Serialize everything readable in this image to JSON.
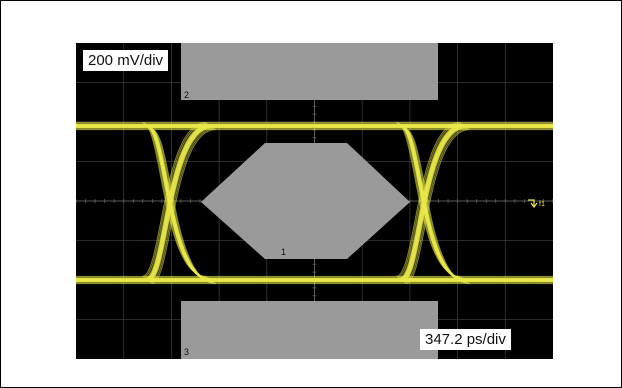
{
  "scope": {
    "vertical_scale": "200 mV/div",
    "horizontal_scale": "347.2 ps/div",
    "trigger_marker": "T",
    "trigger_level_label": "f1",
    "mask_regions": [
      {
        "id": "top",
        "label": "2"
      },
      {
        "id": "center",
        "label": "1"
      },
      {
        "id": "bottom",
        "label": "3"
      }
    ],
    "colors": {
      "background": "#000000",
      "trace": "#e8e84a",
      "mask": "#9a9a9a",
      "grid": "#3a3a3a"
    }
  }
}
